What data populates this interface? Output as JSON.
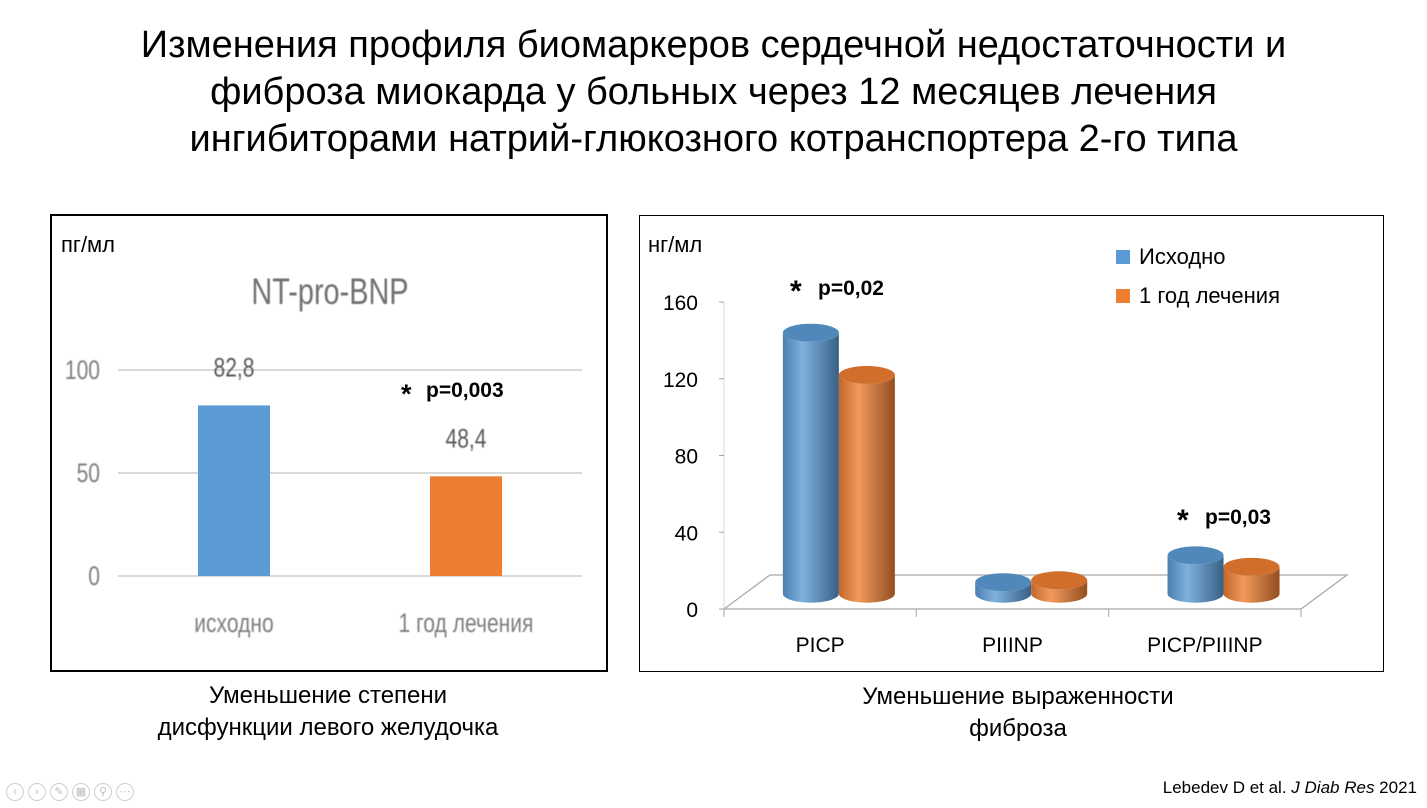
{
  "title_lines": [
    "Изменения профиля биомаркеров сердечной недостаточности и",
    "фиброза миокарда у больных через 12 месяцев лечения",
    "ингибиторами натрий-глюкозного котранспортера 2-го типа"
  ],
  "chart_data": [
    {
      "type": "bar",
      "title": "NT-pro-BNP",
      "unit_label": "пг/мл",
      "categories": [
        "исходно",
        "1 год лечения"
      ],
      "values": [
        82.8,
        48.4
      ],
      "value_labels": [
        "82,8",
        "48,4"
      ],
      "colors": [
        "#5b9bd5",
        "#ed7d31"
      ],
      "ylim": [
        0,
        100
      ],
      "yticks": [
        0,
        50,
        100
      ],
      "ytick_labels": [
        "0",
        "50",
        "100"
      ],
      "grid": true,
      "annotation": {
        "star": "*",
        "text": "p=0,003",
        "category": "1 год лечения"
      }
    },
    {
      "type": "bar",
      "style": "3d-cylinder",
      "unit_label": "нг/мл",
      "categories": [
        "PICP",
        "PIIINP",
        "PICP/PIIINP"
      ],
      "series": [
        {
          "name": "Исходно",
          "color": "#5b9bd5",
          "values": [
            136,
            6,
            20
          ]
        },
        {
          "name": "1 год лечения",
          "color": "#ed7d31",
          "values": [
            114,
            7,
            14
          ]
        }
      ],
      "ylim": [
        0,
        160
      ],
      "yticks": [
        0,
        40,
        80,
        120,
        160
      ],
      "ytick_labels": [
        "0",
        "40",
        "80",
        "120",
        "160"
      ],
      "legend": "top-right",
      "annotations": [
        {
          "star": "*",
          "text": "p=0,02",
          "category": "PICP"
        },
        {
          "star": "*",
          "text": "p=0,03",
          "category": "PICP/PIIINP"
        }
      ]
    }
  ],
  "captions": {
    "left": [
      "Уменьшение степени",
      "дисфункции левого желудочка"
    ],
    "right": [
      "Уменьшение выраженности",
      "фиброза"
    ]
  },
  "citation": {
    "authors": "Lebedev D et al.",
    "journal": "J Diab Res",
    "year": "2021"
  },
  "nav_icons": [
    "prev-icon",
    "next-icon",
    "pen-icon",
    "slides-icon",
    "zoom-icon",
    "more-icon"
  ]
}
